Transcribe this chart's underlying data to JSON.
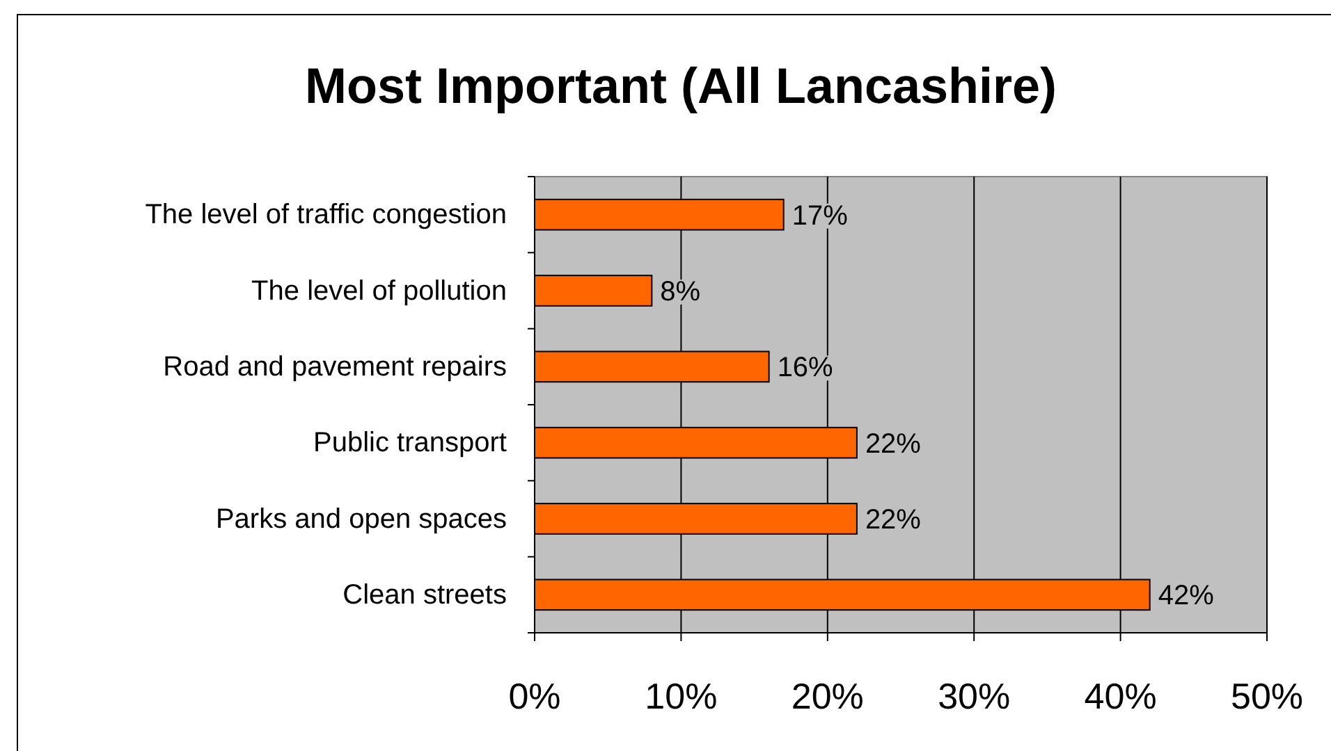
{
  "chart_data": {
    "type": "bar",
    "orientation": "horizontal",
    "title": "Most Important (All Lancashire)",
    "categories": [
      "The level of traffic congestion",
      "The level of pollution",
      "Road and pavement repairs",
      "Public transport",
      "Parks and open spaces",
      "Clean streets"
    ],
    "values": [
      17,
      8,
      16,
      22,
      22,
      42
    ],
    "value_labels": [
      "17%",
      "8%",
      "16%",
      "22%",
      "22%",
      "42%"
    ],
    "color": "#ff6600",
    "xlim": [
      0,
      50
    ],
    "xticks": [
      {
        "value": 0,
        "label": "0%"
      },
      {
        "value": 10,
        "label": "10%"
      },
      {
        "value": 20,
        "label": "20%"
      },
      {
        "value": 30,
        "label": "30%"
      },
      {
        "value": 40,
        "label": "40%"
      },
      {
        "value": 50,
        "label": "50%"
      }
    ],
    "grid": "x"
  }
}
